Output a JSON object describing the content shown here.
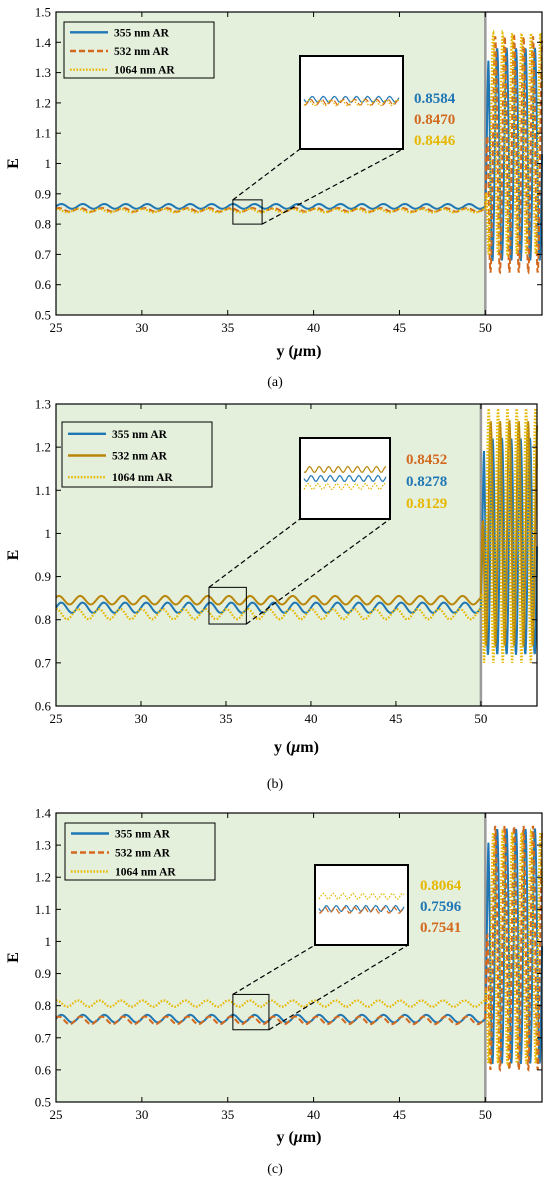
{
  "chart_data": [
    {
      "type": "line",
      "panel_label": "(a)",
      "xlabel": "y (μm)",
      "ylabel": "E",
      "xlim": [
        25,
        53.3
      ],
      "ylim": [
        0.5,
        1.5
      ],
      "x_ticks": [
        25,
        30,
        35,
        40,
        45,
        50
      ],
      "y_ticks": [
        0.5,
        0.6,
        0.7,
        0.8,
        0.9,
        1.0,
        1.1,
        1.2,
        1.3,
        1.4,
        1.5
      ],
      "y_tick_labels": [
        "0.5",
        "0.6",
        "0.7",
        "0.8",
        "0.9",
        "1",
        "1.1",
        "1.2",
        "1.3",
        "1.4",
        "1.5"
      ],
      "background_region_x": [
        25,
        50
      ],
      "legend_position": "top-left",
      "series": [
        {
          "name": "355 nm AR",
          "color": "#1f77b4",
          "style": "solid",
          "mean": 0.8584,
          "ripple": 0.008,
          "tail_range": [
            0.68,
            1.38
          ],
          "inset_offset": 0.01
        },
        {
          "name": "532 nm AR",
          "color": "#d2691e",
          "style": "dashed",
          "mean": 0.847,
          "ripple": 0.006,
          "tail_range": [
            0.64,
            1.42
          ],
          "inset_offset": 0.001
        },
        {
          "name": "1064 nm AR",
          "color": "#e6b800",
          "style": "dotted",
          "mean": 0.8446,
          "ripple": 0.006,
          "tail_range": [
            0.7,
            1.43
          ],
          "inset_offset": -0.001
        }
      ],
      "inset_box_x": [
        35.3,
        37.0
      ],
      "inset_box_y": [
        0.8,
        0.88
      ],
      "annotations": [
        {
          "text": "0.8584",
          "color": "#1f77b4"
        },
        {
          "text": "0.8470",
          "color": "#d2691e"
        },
        {
          "text": "0.8446",
          "color": "#e6b800"
        }
      ]
    },
    {
      "type": "line",
      "panel_label": "(b)",
      "xlabel": "y (μm)",
      "ylabel": "E",
      "xlim": [
        25,
        53.3
      ],
      "ylim": [
        0.6,
        1.3
      ],
      "x_ticks": [
        25,
        30,
        35,
        40,
        45,
        50
      ],
      "y_ticks": [
        0.6,
        0.7,
        0.8,
        0.9,
        1.0,
        1.1,
        1.2,
        1.3
      ],
      "y_tick_labels": [
        "0.6",
        "0.7",
        "0.8",
        "0.9",
        "1",
        "1.1",
        "1.2",
        "1.3"
      ],
      "background_region_x": [
        25,
        50
      ],
      "legend_position": "top-left",
      "series": [
        {
          "name": "355 nm AR",
          "color": "#1f77b4",
          "style": "solid",
          "mean": 0.8278,
          "ripple": 0.012,
          "tail_range": [
            0.72,
            1.22
          ],
          "inset_offset": 0.0
        },
        {
          "name": "532 nm AR",
          "color": "#b8860b",
          "style": "solid",
          "mean": 0.8452,
          "ripple": 0.01,
          "tail_range": [
            0.74,
            1.26
          ],
          "inset_offset": 0.02
        },
        {
          "name": "1064 nm AR",
          "color": "#e6b800",
          "style": "dotted",
          "mean": 0.8129,
          "ripple": 0.012,
          "tail_range": [
            0.7,
            1.29
          ],
          "inset_offset": -0.018
        }
      ],
      "inset_box_x": [
        34.0,
        36.2
      ],
      "inset_box_y": [
        0.79,
        0.875
      ],
      "annotations": [
        {
          "text": "0.8452",
          "color": "#d2691e"
        },
        {
          "text": "0.8278",
          "color": "#1f77b4"
        },
        {
          "text": "0.8129",
          "color": "#e6b800"
        }
      ]
    },
    {
      "type": "line",
      "panel_label": "(c)",
      "xlabel": "y (μm)",
      "ylabel": "E",
      "xlim": [
        25,
        53.3
      ],
      "ylim": [
        0.5,
        1.4
      ],
      "x_ticks": [
        25,
        30,
        35,
        40,
        45,
        50
      ],
      "y_ticks": [
        0.5,
        0.6,
        0.7,
        0.8,
        0.9,
        1.0,
        1.1,
        1.2,
        1.3,
        1.4
      ],
      "y_tick_labels": [
        "0.5",
        "0.6",
        "0.7",
        "0.8",
        "0.9",
        "1",
        "1.1",
        "1.2",
        "1.3",
        "1.4"
      ],
      "background_region_x": [
        25,
        50
      ],
      "legend_position": "top-left",
      "series": [
        {
          "name": "355 nm AR",
          "color": "#1f77b4",
          "style": "solid",
          "mean": 0.7596,
          "ripple": 0.012,
          "tail_range": [
            0.62,
            1.35
          ],
          "inset_offset": -0.01
        },
        {
          "name": "532 nm AR",
          "color": "#d2691e",
          "style": "dashed",
          "mean": 0.7541,
          "ripple": 0.012,
          "tail_range": [
            0.6,
            1.36
          ],
          "inset_offset": -0.015
        },
        {
          "name": "1064 nm AR",
          "color": "#e6b800",
          "style": "dotted",
          "mean": 0.8064,
          "ripple": 0.01,
          "tail_range": [
            0.62,
            1.34
          ],
          "inset_offset": 0.025
        }
      ],
      "inset_box_x": [
        35.3,
        37.4
      ],
      "inset_box_y": [
        0.725,
        0.835
      ],
      "annotations": [
        {
          "text": "0.8064",
          "color": "#e6b800"
        },
        {
          "text": "0.7596",
          "color": "#1f77b4"
        },
        {
          "text": "0.7541",
          "color": "#d2691e"
        }
      ]
    }
  ]
}
